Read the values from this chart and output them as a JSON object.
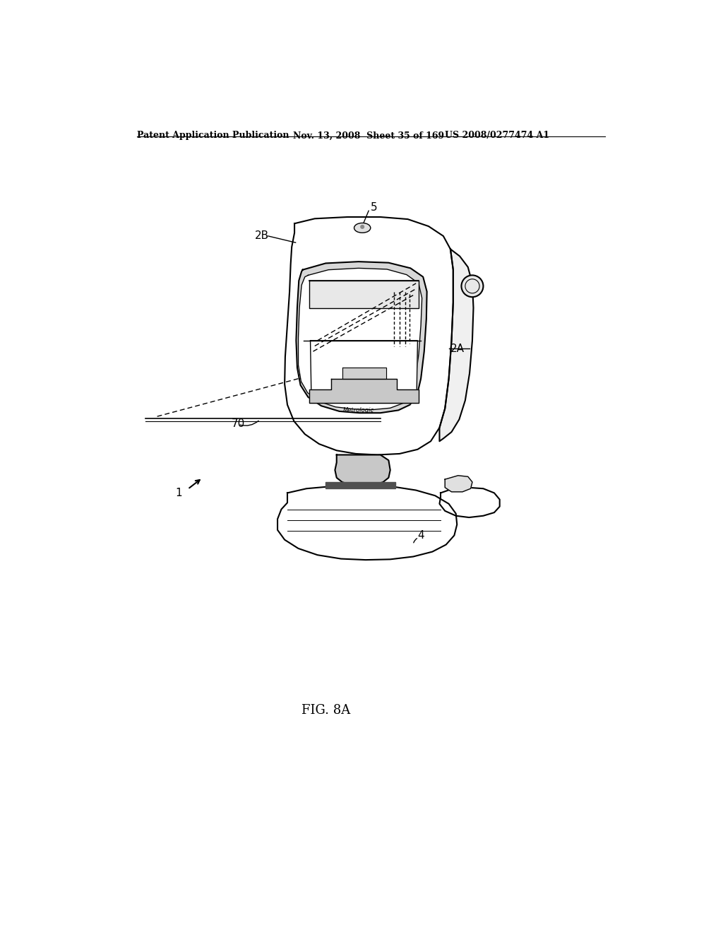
{
  "background_color": "#ffffff",
  "header_left": "Patent Application Publication",
  "header_mid": "Nov. 13, 2008  Sheet 35 of 169",
  "header_right": "US 2008/0277474 A1",
  "figure_label": "FIG. 8A",
  "fig_width": 10.24,
  "fig_height": 13.2
}
